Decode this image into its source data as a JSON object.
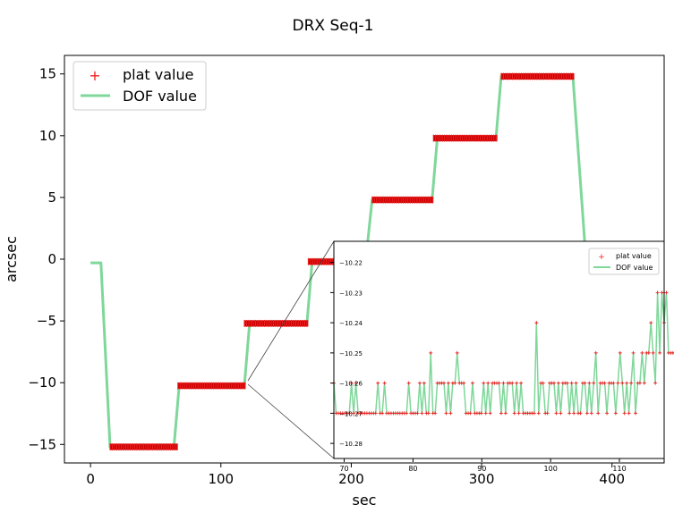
{
  "chart_data": [
    {
      "type": "line",
      "title": "DRX Seq-1",
      "xlabel": "sec",
      "ylabel": "arcsec",
      "xlim": [
        -20,
        440
      ],
      "ylim": [
        -16.5,
        16.5
      ],
      "xticks": [
        0,
        100,
        200,
        300,
        400
      ],
      "yticks": [
        -15,
        -10,
        -5,
        0,
        5,
        10,
        15
      ],
      "legend": {
        "placement": "top-left",
        "entries": [
          "plat value",
          "DOF value"
        ]
      },
      "colors": {
        "plat": "#ee2222",
        "plat_dense": "#cc0000",
        "dof": "#7fd79a"
      },
      "series": [
        {
          "name": "DOF value",
          "style": "line",
          "x": [
            0,
            8,
            15,
            64,
            68,
            118,
            122,
            166,
            170,
            211,
            216,
            262,
            266,
            311,
            315,
            370,
            380
          ],
          "y": [
            -0.3,
            -0.3,
            -15.2,
            -15.2,
            -10.25,
            -10.25,
            -5.2,
            -5.2,
            -0.2,
            -0.2,
            4.8,
            4.8,
            9.8,
            9.8,
            14.8,
            14.8,
            0
          ]
        },
        {
          "name": "plat value",
          "style": "markers",
          "segments": [
            {
              "x_start": 15,
              "x_end": 67,
              "y": -15.2
            },
            {
              "x_start": 67,
              "x_end": 119,
              "y": -10.25
            },
            {
              "x_start": 118,
              "x_end": 167,
              "y": -5.2
            },
            {
              "x_start": 167,
              "x_end": 212,
              "y": -0.2
            },
            {
              "x_start": 216,
              "x_end": 263,
              "y": 4.8
            },
            {
              "x_start": 263,
              "x_end": 312,
              "y": 9.8
            },
            {
              "x_start": 315,
              "x_end": 371,
              "y": 14.8
            }
          ]
        }
      ]
    },
    {
      "type": "line",
      "role": "inset zoom of the plateau around -10.25 arcsec",
      "xlim": [
        68.5,
        116.5
      ],
      "ylim": [
        -10.285,
        -10.213
      ],
      "xticks": [
        70,
        80,
        90,
        100,
        110
      ],
      "yticks": [
        -10.22,
        -10.23,
        -10.24,
        -10.25,
        -10.26,
        -10.27,
        -10.28
      ],
      "legend": {
        "placement": "top-right",
        "entries": [
          "plat value",
          "DOF value"
        ]
      },
      "series": [
        {
          "name": "DOF value",
          "x_start": 68.5,
          "x_step": 0.32,
          "y": [
            -10.26,
            -10.27,
            -10.27,
            -10.27,
            -10.27,
            -10.27,
            -10.27,
            -10.27,
            -10.26,
            -10.27,
            -10.26,
            -10.27,
            -10.27,
            -10.27,
            -10.27,
            -10.27,
            -10.27,
            -10.27,
            -10.27,
            -10.27,
            -10.26,
            -10.27,
            -10.27,
            -10.26,
            -10.27,
            -10.27,
            -10.27,
            -10.27,
            -10.27,
            -10.27,
            -10.27,
            -10.27,
            -10.27,
            -10.27,
            -10.26,
            -10.27,
            -10.27,
            -10.27,
            -10.27,
            -10.26,
            -10.27,
            -10.26,
            -10.27,
            -10.27,
            -10.25,
            -10.27,
            -10.27,
            -10.26,
            -10.26,
            -10.26,
            -10.26,
            -10.27,
            -10.26,
            -10.27,
            -10.26,
            -10.26,
            -10.25,
            -10.26,
            -10.26,
            -10.26,
            -10.27,
            -10.27,
            -10.27,
            -10.26,
            -10.27,
            -10.27,
            -10.27,
            -10.27,
            -10.26,
            -10.27,
            -10.26,
            -10.27,
            -10.26,
            -10.26,
            -10.26,
            -10.26,
            -10.27,
            -10.26,
            -10.27,
            -10.26,
            -10.26,
            -10.26,
            -10.27,
            -10.26,
            -10.27,
            -10.26,
            -10.27,
            -10.27,
            -10.27,
            -10.27,
            -10.27,
            -10.27,
            -10.24,
            -10.27,
            -10.26,
            -10.26,
            -10.27,
            -10.27,
            -10.26,
            -10.26,
            -10.26,
            -10.27,
            -10.26,
            -10.27,
            -10.26,
            -10.26,
            -10.26,
            -10.27,
            -10.26,
            -10.27,
            -10.26,
            -10.27,
            -10.27,
            -10.26,
            -10.26,
            -10.27,
            -10.26,
            -10.27,
            -10.26,
            -10.25,
            -10.27,
            -10.26,
            -10.26,
            -10.26,
            -10.27,
            -10.26,
            -10.26,
            -10.26,
            -10.27,
            -10.26,
            -10.25,
            -10.26,
            -10.27,
            -10.26,
            -10.27,
            -10.26,
            -10.25,
            -10.27,
            -10.26,
            -10.26,
            -10.25,
            -10.26,
            -10.25,
            -10.25,
            -10.24,
            -10.25,
            -10.26,
            -10.23,
            -10.25,
            -10.23,
            -10.24,
            -10.23,
            -10.25,
            -10.25,
            -10.25,
            -10.25,
            -10.25,
            -10.26,
            -10.27,
            -10.26,
            -10.25,
            -10.27,
            -10.26,
            -10.25,
            -10.26,
            -10.27,
            -10.25,
            -10.27,
            -10.27,
            -10.26,
            -10.27,
            -10.26,
            -10.25,
            -10.23,
            -10.26,
            -10.27,
            -10.25,
            -10.26,
            -10.25,
            -10.26,
            -10.25,
            -10.25,
            -10.26
          ]
        }
      ]
    }
  ]
}
